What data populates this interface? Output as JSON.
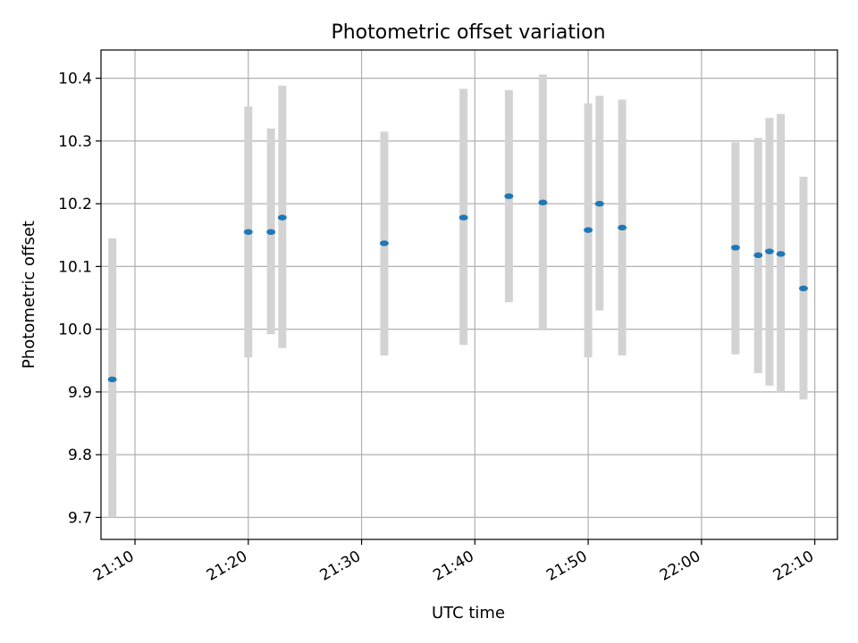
{
  "chart_data": {
    "type": "scatter",
    "title": "Photometric offset variation",
    "xlabel": "UTC time",
    "ylabel": "Photometric offset",
    "grid": true,
    "xlim": [
      "21:07",
      "22:12"
    ],
    "ylim": [
      9.665,
      10.445
    ],
    "x_ticks": [
      "21:10",
      "21:20",
      "21:30",
      "21:40",
      "21:50",
      "22:00",
      "22:10"
    ],
    "y_ticks": [
      "9.7",
      "9.8",
      "9.9",
      "10.0",
      "10.1",
      "10.2",
      "10.3",
      "10.4"
    ],
    "points": [
      {
        "x": "21:08",
        "y": 9.92,
        "low": 9.7,
        "high": 10.145
      },
      {
        "x": "21:20",
        "y": 10.155,
        "low": 9.955,
        "high": 10.355
      },
      {
        "x": "21:22",
        "y": 10.155,
        "low": 9.992,
        "high": 10.32
      },
      {
        "x": "21:23",
        "y": 10.178,
        "low": 9.97,
        "high": 10.388
      },
      {
        "x": "21:32",
        "y": 10.137,
        "low": 9.958,
        "high": 10.315
      },
      {
        "x": "21:39",
        "y": 10.178,
        "low": 9.975,
        "high": 10.383
      },
      {
        "x": "21:43",
        "y": 10.212,
        "low": 10.043,
        "high": 10.381
      },
      {
        "x": "21:46",
        "y": 10.202,
        "low": 9.998,
        "high": 10.406
      },
      {
        "x": "21:50",
        "y": 10.158,
        "low": 9.955,
        "high": 10.36
      },
      {
        "x": "21:51",
        "y": 10.2,
        "low": 10.03,
        "high": 10.372
      },
      {
        "x": "21:53",
        "y": 10.162,
        "low": 9.958,
        "high": 10.366
      },
      {
        "x": "22:03",
        "y": 10.13,
        "low": 9.96,
        "high": 10.298
      },
      {
        "x": "22:05",
        "y": 10.118,
        "low": 9.93,
        "high": 10.305
      },
      {
        "x": "22:06",
        "y": 10.124,
        "low": 9.91,
        "high": 10.337
      },
      {
        "x": "22:07",
        "y": 10.12,
        "low": 9.9,
        "high": 10.343
      },
      {
        "x": "22:09",
        "y": 10.065,
        "low": 9.888,
        "high": 10.243
      }
    ],
    "colors": {
      "marker": "#1f77b4",
      "errorbar": "#d3d3d3",
      "grid": "#b0b0b0"
    }
  }
}
